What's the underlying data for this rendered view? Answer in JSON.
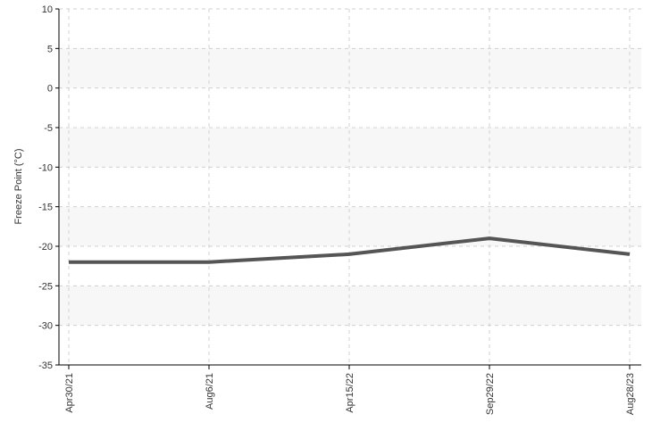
{
  "chart_data": {
    "type": "line",
    "title": "",
    "xlabel": "",
    "ylabel": "Freeze Point (°C)",
    "categories": [
      "Apr30/21",
      "Aug6/21",
      "Apr15/22",
      "Sep29/22",
      "Aug28/23"
    ],
    "series": [
      {
        "values": [
          -22,
          -22,
          -21,
          -19,
          -21
        ]
      }
    ],
    "ylim": [
      -35,
      10
    ],
    "yticks": [
      10,
      5,
      0,
      -5,
      -10,
      -15,
      -20,
      -25,
      -30,
      -35
    ],
    "grid": true,
    "legend": "none"
  },
  "colors": {
    "line": "#555555",
    "band": "#f7f7f7",
    "grid": "#d0d0d0",
    "axis": "#000000"
  }
}
